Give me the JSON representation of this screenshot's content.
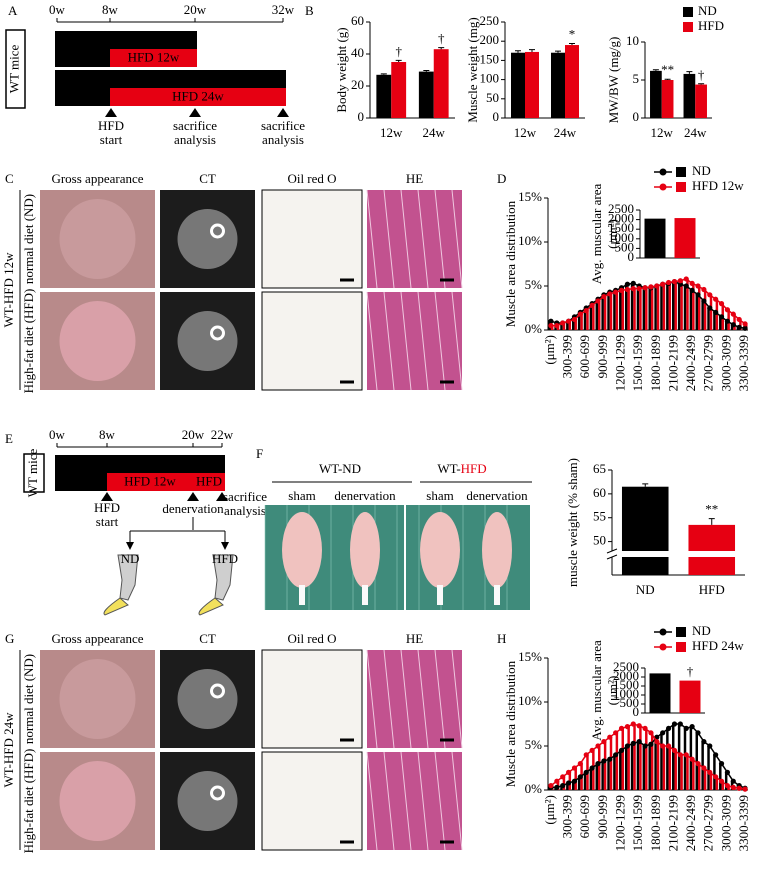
{
  "panels": {
    "A": {
      "label": "A",
      "weeks": [
        "0w",
        "8w",
        "20w",
        "32w"
      ],
      "group": "WT mice",
      "rows": [
        [
          "ND",
          "ND 12w"
        ],
        [
          "ND",
          "HFD 12w"
        ],
        [
          "ND",
          "ND 24w"
        ],
        [
          "ND",
          "HFD 24w"
        ]
      ],
      "events": [
        [
          "HFD",
          "start"
        ],
        [
          "sacrifice",
          "analysis"
        ],
        [
          "sacrifice",
          "analysis"
        ]
      ]
    },
    "B": {
      "label": "B"
    },
    "C": {
      "label": "C",
      "columns": [
        "Gross appearance",
        "CT",
        "Oil red O",
        "HE"
      ],
      "group": "WT-HFD 12w",
      "rows": [
        "normal diet (ND)",
        "High-fat diet (HFD)"
      ]
    },
    "D": {
      "label": "D"
    },
    "E": {
      "label": "E",
      "weeks": [
        "0w",
        "8w",
        "20w",
        "22w"
      ],
      "group": "WT mice",
      "rows": [
        [
          "ND",
          "ND 12w",
          "ND"
        ],
        [
          "ND",
          "HFD 12w",
          "HFD"
        ]
      ],
      "events": [
        [
          "HFD",
          "start"
        ],
        [
          "denervation"
        ],
        [
          "sacrifice",
          "analysis"
        ]
      ],
      "diagram_labels": [
        "ND",
        "HFD"
      ]
    },
    "F": {
      "label": "F",
      "photo_groups": [
        [
          "WT-ND"
        ],
        [
          "WT-",
          "HFD"
        ]
      ],
      "photo_labels": [
        "sham",
        "denervation",
        "sham",
        "denervation"
      ]
    },
    "G": {
      "label": "G",
      "columns": [
        "Gross appearance",
        "CT",
        "Oil red O",
        "HE"
      ],
      "group": "WT-HFD 24w",
      "rows": [
        "normal diet (ND)",
        "High-fat diet (HFD)"
      ]
    },
    "H": {
      "label": "H"
    }
  },
  "chart_data": [
    {
      "type": "bar",
      "ylabel": "Body weight (g)",
      "categories": [
        "12w",
        "24w"
      ],
      "series": [
        {
          "color": "#000000",
          "values": [
            27,
            29
          ],
          "errors": [
            0.6,
            0.7
          ]
        },
        {
          "color": "#e60012",
          "values": [
            35,
            43
          ],
          "errors": [
            1,
            1
          ]
        }
      ],
      "annotations": [
        "†",
        "†"
      ],
      "ylim": [
        0,
        60
      ],
      "yticks": [
        0,
        20,
        40,
        60
      ]
    },
    {
      "type": "bar",
      "ylabel": "Muscle weight (mg)",
      "categories": [
        "12w",
        "24w"
      ],
      "series": [
        {
          "color": "#000000",
          "values": [
            170,
            170
          ],
          "errors": [
            5,
            4
          ]
        },
        {
          "color": "#e60012",
          "values": [
            172,
            190
          ],
          "errors": [
            6,
            4
          ]
        }
      ],
      "annotations": [
        null,
        "*"
      ],
      "ylim": [
        0,
        250
      ],
      "yticks": [
        0,
        50,
        100,
        150,
        200,
        250
      ]
    },
    {
      "type": "bar",
      "ylabel": "MW/BW (mg/g)",
      "categories": [
        "12w",
        "24w"
      ],
      "series": [
        {
          "name": "ND",
          "color": "#000000",
          "values": [
            6.2,
            5.8
          ],
          "errors": [
            0.15,
            0.3
          ]
        },
        {
          "name": "HFD",
          "color": "#e60012",
          "values": [
            5.0,
            4.4
          ],
          "errors": [
            0.1,
            0.1
          ]
        }
      ],
      "annotations": [
        "**",
        "†"
      ],
      "ylim": [
        0,
        10
      ],
      "yticks": [
        0,
        5,
        10
      ],
      "legend": "top-right"
    },
    {
      "type": "bar",
      "line": true,
      "ylabel": "Muscle area distribution",
      "categories": [
        "(μm²)",
        null,
        null,
        "300-399",
        null,
        null,
        "600-699",
        null,
        null,
        "900-999",
        null,
        null,
        "1200-1299",
        null,
        null,
        "1500-1599",
        null,
        null,
        "1800-1899",
        null,
        null,
        "2100-2199",
        null,
        null,
        "2400-2499",
        null,
        null,
        "2700-2799",
        null,
        null,
        "3000-3099",
        null,
        null,
        "3300-3399"
      ],
      "series": [
        {
          "name": "ND",
          "color": "#000000",
          "values": [
            1,
            0.8,
            0.8,
            1,
            1.5,
            2,
            2.5,
            3,
            3.5,
            4,
            4.3,
            4.5,
            4.8,
            5.2,
            5.3,
            5,
            4.8,
            4.8,
            5,
            5.2,
            5.3,
            5.5,
            5.2,
            5,
            4.5,
            4,
            3.3,
            2.5,
            2,
            1.5,
            1,
            0.6,
            0.3,
            0.2
          ]
        },
        {
          "name": "HFD 12w",
          "color": "#e60012",
          "values": [
            0.5,
            0.5,
            0.8,
            1,
            1.2,
            1.8,
            2.2,
            2.8,
            3.3,
            3.8,
            4.1,
            4.3,
            4.5,
            4.6,
            4.7,
            4.7,
            4.8,
            4.9,
            5,
            5.2,
            5.4,
            5.5,
            5.6,
            5.8,
            5.3,
            5,
            4.6,
            4,
            3.5,
            3,
            2.3,
            1.8,
            1.2,
            0.7
          ]
        }
      ],
      "ylim": [
        0,
        15
      ],
      "yticks": [
        {
          "value": 0,
          "label": "0%"
        },
        {
          "value": 5,
          "label": "5%"
        },
        {
          "value": 10,
          "label": "10%"
        },
        {
          "value": 15,
          "label": "15%"
        }
      ],
      "legend": "top-right"
    },
    {
      "type": "bar",
      "ylabel": [
        "Avg. muscular area",
        "(μm²)"
      ],
      "values": [
        2050,
        2080
      ],
      "colors": [
        "#000000",
        "#e60012"
      ],
      "ylim": [
        0,
        2500
      ],
      "yticks": [
        0,
        500,
        1000,
        1500,
        2000,
        2500
      ]
    },
    {
      "type": "bar",
      "ylabel": "muscle weight (% sham)",
      "categories": [
        "ND",
        "HFD"
      ],
      "values": [
        61.5,
        53.5
      ],
      "errors": [
        0.6,
        1.3
      ],
      "colors": [
        "#000000",
        "#e60012"
      ],
      "annotations": [
        null,
        "**"
      ],
      "ylim": [
        43,
        65
      ],
      "yticks": [
        50,
        55,
        60,
        65
      ],
      "axis_break": true
    },
    {
      "type": "bar",
      "line": true,
      "ylabel": "Muscle area distribution",
      "categories": [
        "(μm²)",
        null,
        null,
        "300-399",
        null,
        null,
        "600-699",
        null,
        null,
        "900-999",
        null,
        null,
        "1200-1299",
        null,
        null,
        "1500-1599",
        null,
        null,
        "1800-1899",
        null,
        null,
        "2100-2199",
        null,
        null,
        "2400-2499",
        null,
        null,
        "2700-2799",
        null,
        null,
        "3000-3099",
        null,
        null,
        "3300-3399"
      ],
      "series": [
        {
          "name": "ND",
          "color": "#000000",
          "values": [
            0.3,
            0.3,
            0.5,
            0.8,
            1,
            1.5,
            2,
            2.5,
            3,
            3.3,
            3.5,
            4,
            4.5,
            5,
            5.3,
            5.5,
            5,
            5.2,
            6,
            6.5,
            7,
            7.5,
            7.5,
            7,
            7.2,
            6.5,
            5.5,
            5,
            4,
            3,
            2,
            1,
            0.5,
            0.2
          ]
        },
        {
          "name": "HFD 24w",
          "color": "#e60012",
          "values": [
            0.5,
            1,
            1.5,
            2,
            2.5,
            3,
            4,
            4.5,
            5,
            5.5,
            6,
            6.5,
            7,
            7.2,
            7.5,
            7.3,
            7,
            6.5,
            5.5,
            5,
            5,
            4.5,
            4,
            4,
            3.5,
            3,
            2.5,
            2,
            1.5,
            1,
            0.5,
            0.3,
            0.2,
            0.1
          ]
        }
      ],
      "ylim": [
        0,
        15
      ],
      "yticks": [
        {
          "value": 0,
          "label": "0%"
        },
        {
          "value": 5,
          "label": "5%"
        },
        {
          "value": 10,
          "label": "10%"
        },
        {
          "value": 15,
          "label": "15%"
        }
      ],
      "legend": "top-right"
    },
    {
      "type": "bar",
      "ylabel": [
        "Avg. muscular area",
        "(μm²)"
      ],
      "values": [
        2200,
        1800
      ],
      "colors": [
        "#000000",
        "#e60012"
      ],
      "annotations": [
        null,
        "†"
      ],
      "ylim": [
        0,
        2500
      ],
      "yticks": [
        0,
        500,
        1000,
        1500,
        2000,
        2500
      ]
    }
  ]
}
